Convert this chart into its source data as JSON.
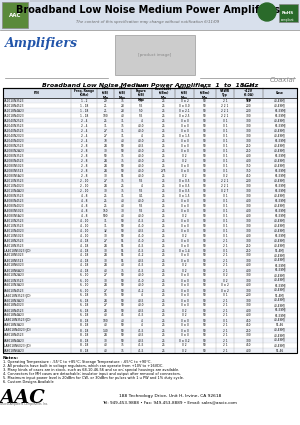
{
  "title": "Broadband Low Noise Medium Power Amplifiers",
  "subtitle": "The content of this specification may change without notification 6/11/09",
  "section": "Amplifiers",
  "coaxial": "Coaxial",
  "table_title": "Broadband Low Noise Medium Power Amplifiers  1  to  18GHz",
  "col_headers": [
    "P/N",
    "Freq. Range\n(GHz)",
    "Gain\n(dB)\nMin  Max",
    "Noise Figure\n(dB)\nMax",
    "Pout(1dB)\n(dBm)\nMin",
    "Flatness\n(dB)\nMax",
    "IP1\n(dBm)\nMin",
    "VSWR\nTyp",
    "Current\n+12V (5.0A)\nTyp",
    "Case"
  ],
  "rows": [
    [
      "LA1010N3523",
      "1 - 2",
      "29",
      "35",
      "5.0",
      "25",
      "0 ± 2",
      "50",
      "2 1",
      "150",
      "40.4SMJ"
    ],
    [
      "LA1018N4523",
      "1 - 18",
      "21",
      "28",
      "5.5",
      "25",
      "0 ± 0.0",
      "50",
      "2 2 1",
      "200",
      "40.4SMJ"
    ],
    [
      "LA1018N4A23",
      "1 - 18",
      "21",
      "28",
      "5.0",
      "25",
      "0 ± 2.1",
      "50",
      "2 2 1",
      "200",
      "61.5SMJ"
    ],
    [
      "LA1018N4023",
      "1 - 18",
      "100",
      "40",
      "5.5",
      "25",
      "0 ± 2.5",
      "50",
      "2 2 1",
      "300",
      "61.5SMJ"
    ],
    [
      "LA2040N2523",
      "2 - 4",
      "25",
      "31",
      "4",
      "25",
      "0 ± 0",
      "50",
      "0 1",
      "300",
      "40.4SMJ"
    ],
    [
      "LA2040N3523",
      "2 - 4",
      "31",
      "35",
      "40.0",
      "25",
      "0 ± 0",
      "50",
      "0 1",
      "300",
      "61.5SMJ"
    ],
    [
      "LA2040N4523",
      "2 - 4",
      "27",
      "31",
      "40.0",
      "25",
      "0 ± 0",
      "50",
      "0 1",
      "300",
      "40.4SMJ"
    ],
    [
      "LA2040N2023",
      "2 - 4",
      "27",
      "31",
      "4",
      "25",
      "0 ± 1.5",
      "50",
      "0 1",
      "300",
      "40.4SMJ"
    ],
    [
      "LA2040N4023",
      "2 - 4",
      "70",
      "40",
      "40.0",
      "25",
      "0 ± 0",
      "50",
      "0 1",
      "300",
      "61.5SMJ"
    ],
    [
      "LA2080N2523",
      "2 - 8",
      "24",
      "50",
      "40.5",
      "25",
      "0 ± 0",
      "50",
      "0 1",
      "250",
      "40.4SMJ"
    ],
    [
      "LA2080N2A23",
      "2 - 8",
      "30",
      "50",
      "40.0",
      "25",
      "0 ± 0",
      "50",
      "0 1",
      "250",
      "40.4SMJ"
    ],
    [
      "LA2080N3523",
      "2 - 8",
      "50",
      "35",
      "40.0",
      "25",
      "0 2",
      "50",
      "0 1",
      "400",
      "61.5SMJ"
    ],
    [
      "LA2080N4523",
      "2 - 8",
      "24",
      "35",
      "40.0",
      "25",
      "0 2",
      "50",
      "0 1",
      "400",
      "40.4SMJ"
    ],
    [
      "LA2080N5023",
      "2 - 8",
      "24",
      "50",
      "40.0",
      "25",
      "0 ± 0",
      "50",
      "0 1",
      "350",
      "40.4SMJ"
    ],
    [
      "LA2080N5523",
      "2 - 8",
      "24",
      "50",
      "40.0",
      "275",
      "0 ± 0",
      "50",
      "0 1",
      "350",
      "61.5SMJ"
    ],
    [
      "LA2080N5A23",
      "2 - 8",
      "30",
      "55",
      "40.0",
      "25",
      "0 2",
      "50",
      "0 2",
      "450",
      "61.5SMJ"
    ],
    [
      "LA2010N3523",
      "2 - 10",
      "27",
      "35",
      "5.5",
      "25",
      "0 ± 0.5",
      "50",
      "2 2 1",
      "200",
      "40.4SMJ"
    ],
    [
      "LA2010N4023",
      "2 - 10",
      "24",
      "25",
      "4",
      "25",
      "0 ± 0.5",
      "50",
      "2 2 1",
      "300",
      "61.5SMJ"
    ],
    [
      "LA2010N4A23",
      "2 - 10",
      "30",
      "35",
      "5.5",
      "25",
      "0 ± 0.5",
      "50",
      "0 2 7",
      "300",
      "61.5SMJ"
    ],
    [
      "LA4080N3523",
      "4 - 8",
      "25",
      "31",
      "0.1",
      "25",
      "0 ± 1.5",
      "50",
      "0 1",
      "300",
      "40.4SMJ"
    ],
    [
      "LA4080N4523",
      "4 - 8",
      "25",
      "40",
      "40.0",
      "25",
      "0 ± 0",
      "50",
      "0 1",
      "400",
      "61.5SMJ"
    ],
    [
      "LA4080N4023",
      "4 - 8",
      "25",
      "40",
      "5.5",
      "25",
      "0 ± 0",
      "50",
      "0 1",
      "300",
      "40.4SMJ"
    ],
    [
      "LA4080N5023",
      "4 - 8",
      "150",
      "30",
      "5.5",
      "25",
      "0 ± 0",
      "50",
      "0 1",
      "400",
      "61.5SMJ"
    ],
    [
      "LA4080N5A23",
      "4 - 8",
      "500",
      "40",
      "40.0",
      "25",
      "0 2",
      "50",
      "0 1",
      "400",
      "61.5SMJ"
    ],
    [
      "LA4010N2523",
      "4 - 10",
      "31",
      "50",
      "41.5",
      "25",
      "0 ± 0",
      "50",
      "0 1",
      "300",
      "40.4SMJ"
    ],
    [
      "LA4010N3523",
      "4 - 10",
      "31",
      "50",
      "41.0",
      "25",
      "0 ± 0",
      "50",
      "0 1",
      "300",
      "40.4SMJ"
    ],
    [
      "LA4010N4023",
      "4 - 10",
      "32",
      "50",
      "40.5",
      "25",
      "0 ± 0",
      "50",
      "0 1",
      "300",
      "40.4SMJ"
    ],
    [
      "LA4010N5023",
      "4 - 10",
      "30",
      "50",
      "41.0",
      "25",
      "0 2",
      "50",
      "0 1",
      "400",
      "61.5SMJ"
    ],
    [
      "LA4018N2523",
      "4 - 18",
      "27",
      "55",
      "41.0",
      "25",
      "0 ± 0",
      "50",
      "2 1",
      "300",
      "40.4SMJ"
    ],
    [
      "LA4018N3523",
      "4 - 18",
      "24",
      "55",
      "41.5",
      "25",
      "0 ± 0",
      "50",
      "2 1",
      "250",
      "40.4SMJ"
    ],
    [
      "LA4018N5023 (JD)",
      "4 - 18",
      "30",
      "55",
      "41.5",
      "25",
      "0 ± 1.4",
      "50",
      "0 1",
      "250",
      "51.4MJ"
    ],
    [
      "LA4018N5023",
      "4 - 18",
      "24",
      "55",
      "41.2",
      "25",
      "0 ± 0",
      "50",
      "2 1",
      "300",
      "40.4SMJ"
    ],
    [
      "LA4018N5523",
      "4 - 18",
      "30",
      "55",
      "40.5",
      "25",
      "0 ± 0",
      "50",
      "2 1",
      "300",
      "40.4SMJ"
    ],
    [
      "LA4018N6023",
      "4 - 18",
      "24",
      "40",
      "41.5",
      "25",
      "0 2",
      "50",
      "2 1",
      "400",
      "61.5SMJ"
    ],
    [
      "LA4018N6A23",
      "4 - 18",
      "40",
      "35",
      "41.5",
      "25",
      "0 2",
      "50",
      "2 1",
      "400",
      "61.5SMJ"
    ],
    [
      "LA6010N2A23",
      "6 - 10",
      "27",
      "50",
      "40.0",
      "25",
      "0 ± 0",
      "50",
      "0 2",
      "300",
      "40.4SMJ"
    ],
    [
      "LA6010N3523",
      "6 - 10",
      "30",
      "50",
      "41.0",
      "25",
      "0 ± 0",
      "50",
      "0 2",
      "300",
      "40.4SMJ"
    ],
    [
      "LA6010N3A23",
      "6 - 10",
      "24",
      "50",
      "40.0",
      "25",
      "0 ± 0",
      "50",
      "0 ± 2",
      "400",
      "61.5SMJ"
    ],
    [
      "LA6010N4523",
      "6 - 10",
      "27",
      "50",
      "41.2",
      "25",
      "0 ± 0",
      "50",
      "0 ± 2",
      "300",
      "40.4SMJ"
    ],
    [
      "LA6018N3523 (JD)",
      "6 - 18",
      "16",
      "50",
      "4",
      "25",
      "0 ± 0",
      "50",
      "0 1",
      "200",
      "51.4MJ"
    ],
    [
      "LA6018N3A23",
      "6 - 18",
      "24",
      "50",
      "40.5",
      "25",
      "0 ± 0",
      "50",
      "2 1",
      "300",
      "40.4SMJ"
    ],
    [
      "LA6018N4023",
      "6 - 18",
      "27",
      "50",
      "40.0",
      "25",
      "0 ± 0",
      "50",
      "2 1",
      "300",
      "40.4SMJ"
    ],
    [
      "LA6018N4523",
      "6 - 18",
      "24",
      "50",
      "40.5",
      "25",
      "0 2",
      "50",
      "2 1",
      "400",
      "61.5SMJ"
    ],
    [
      "LA6018N4A23",
      "6 - 18",
      "40",
      "45",
      "41.5",
      "25",
      "0 2",
      "50",
      "2 1",
      "400",
      "61.5SMJ"
    ],
    [
      "LA8018N3523 (JD)",
      "8 - 18",
      "100",
      "40",
      "4",
      "25",
      "0 ± 0",
      "50",
      "0 1",
      "450",
      "40.4SMJ"
    ],
    [
      "LA8018N3A23",
      "8 - 18",
      "40",
      "50",
      "4",
      "25",
      "0 ± 0",
      "50",
      "2 1",
      "450",
      "51.46"
    ],
    [
      "LA8018N4023 (JD)",
      "8 - 18",
      "140",
      "50",
      "41.5",
      "25",
      "0 ± 0",
      "50",
      "2 1",
      "250",
      "40.4SMJ"
    ],
    [
      "LA8018N4523",
      "8 - 18",
      "24",
      "50",
      "40.5",
      "25",
      "0 ± 0",
      "50",
      "2 1",
      "300",
      "40.4SMJ"
    ],
    [
      "LA8018N4A23",
      "8 - 18",
      "30",
      "50",
      "40.5",
      "25",
      "0 ± 0.2",
      "50",
      "2 1",
      "300",
      "40.4SMJ"
    ],
    [
      "LA8018N6023 (JD)",
      "8 - 18",
      "40",
      "35",
      "41.5",
      "25",
      "0 2",
      "50",
      "2 1",
      "450",
      "40.4SMJ"
    ],
    [
      "LA8018N6A23",
      "8 - 18",
      "40",
      "35",
      "41.5",
      "25",
      "0 2",
      "50",
      "2 1",
      "400",
      "51.46"
    ]
  ],
  "notes": [
    "Notes:",
    "1. Operating Temperature : -55°C to +85°C; Storage Temperature : -65°C to +90°C.",
    "2. All products have built in voltage regulators, which can operate from +10V to +16VDC.",
    "3. Many kinds of cases are in stock, such as 68-10-46-56 and so on; special housings are available.",
    "4. Connectors for MH cases are detachable; insulator input and output after removal of connectors.",
    "5. Maximum input power level is 20dBm for CW, or 30dBm for pulses with 1 u PW and 1% duty cycle.",
    "6. Custom Designs Available"
  ],
  "company": "AAC",
  "address": "188 Technology Drive, Unit H, Irvine, CA 92618",
  "contact": "Tel: 949-453-9888 • Fax: 949-453-8889 • Email: sales@aacix.com",
  "company_full": "Advanced Amplifiers Components, Inc.",
  "bg_color": "#ffffff",
  "header_bg": "#d8e0ec",
  "row_alt_bg": "#edf0f7",
  "table_border": "#000000",
  "text_color": "#000000",
  "title_color": "#000000",
  "section_color": "#2255aa"
}
